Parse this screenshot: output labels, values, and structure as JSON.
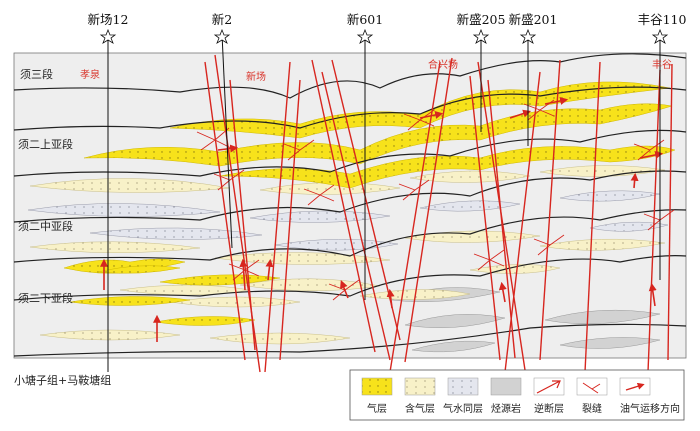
{
  "wells": [
    {
      "id": "xc12",
      "label": "新场12"
    },
    {
      "id": "x2",
      "label": "新2"
    },
    {
      "id": "x601",
      "label": "新601"
    },
    {
      "id": "xs205",
      "label": "新盛205"
    },
    {
      "id": "xs201",
      "label": "新盛201"
    },
    {
      "id": "fg110",
      "label": "丰谷110"
    }
  ],
  "layers": {
    "xu3": "须三段",
    "xu2_upper": "须二上亚段",
    "xu2_middle": "须二中亚段",
    "xu2_lower": "须二下亚段",
    "bottom": "小塘子组+马鞍塘组"
  },
  "areas": {
    "xiaoquan": "孝泉",
    "xinchang": "新场",
    "hexingchang": "合兴场",
    "fenggu": "丰谷"
  },
  "legend": {
    "gas_layer": "气层",
    "gas_bearing": "含气层",
    "gas_water": "气水同层",
    "source_rock": "烃源岩",
    "reverse_fault": "逆断层",
    "fracture": "裂缝",
    "migration": "油气运移方向"
  },
  "colors": {
    "gas": "#f7e21b",
    "gas_bearing": "#f8f1c8",
    "gas_water": "#e4e6ee",
    "source": "#d2d2d2",
    "fault": "#d7261f",
    "background": "#eeeeee"
  }
}
